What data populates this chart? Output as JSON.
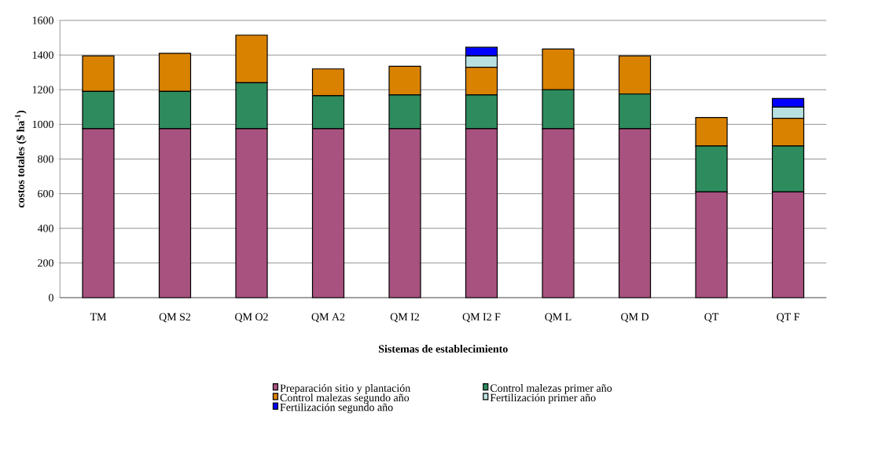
{
  "chart_data": {
    "type": "bar",
    "stacked": true,
    "xlabel": "Sistemas de establecimiento",
    "ylabel": "costos totales ($ ha$^{-1}$)",
    "categories": [
      "TM",
      "QM S2",
      "QM O2",
      "QM A2",
      "QM I2",
      "QM I2 F",
      "QM L",
      "QM D",
      "QT",
      "QT F"
    ],
    "series": [
      {
        "name": "Preparación sitio y plantación",
        "color": "#a8527f",
        "values": [
          975,
          975,
          975,
          975,
          975,
          975,
          975,
          975,
          610,
          610
        ]
      },
      {
        "name": "Control malezas primer año",
        "color": "#2e8b5e",
        "values": [
          215,
          215,
          265,
          190,
          195,
          195,
          225,
          200,
          265,
          265
        ]
      },
      {
        "name": "Control malezas segundo año",
        "color": "#d98200",
        "values": [
          205,
          220,
          275,
          155,
          165,
          160,
          235,
          220,
          165,
          160
        ]
      },
      {
        "name": "Fertilización primer año",
        "color": "#b8e0e0",
        "values": [
          null,
          null,
          null,
          null,
          null,
          65,
          null,
          null,
          null,
          65
        ]
      },
      {
        "name": "Fertilización segundo año",
        "color": "#0000ff",
        "values": [
          null,
          null,
          null,
          null,
          null,
          50,
          null,
          null,
          null,
          50
        ]
      }
    ],
    "ylim": [
      0,
      1600
    ],
    "yticks": [
      0,
      200,
      400,
      600,
      800,
      1000,
      1200,
      1400,
      1600
    ],
    "grid": "y",
    "legend": "bottom"
  }
}
